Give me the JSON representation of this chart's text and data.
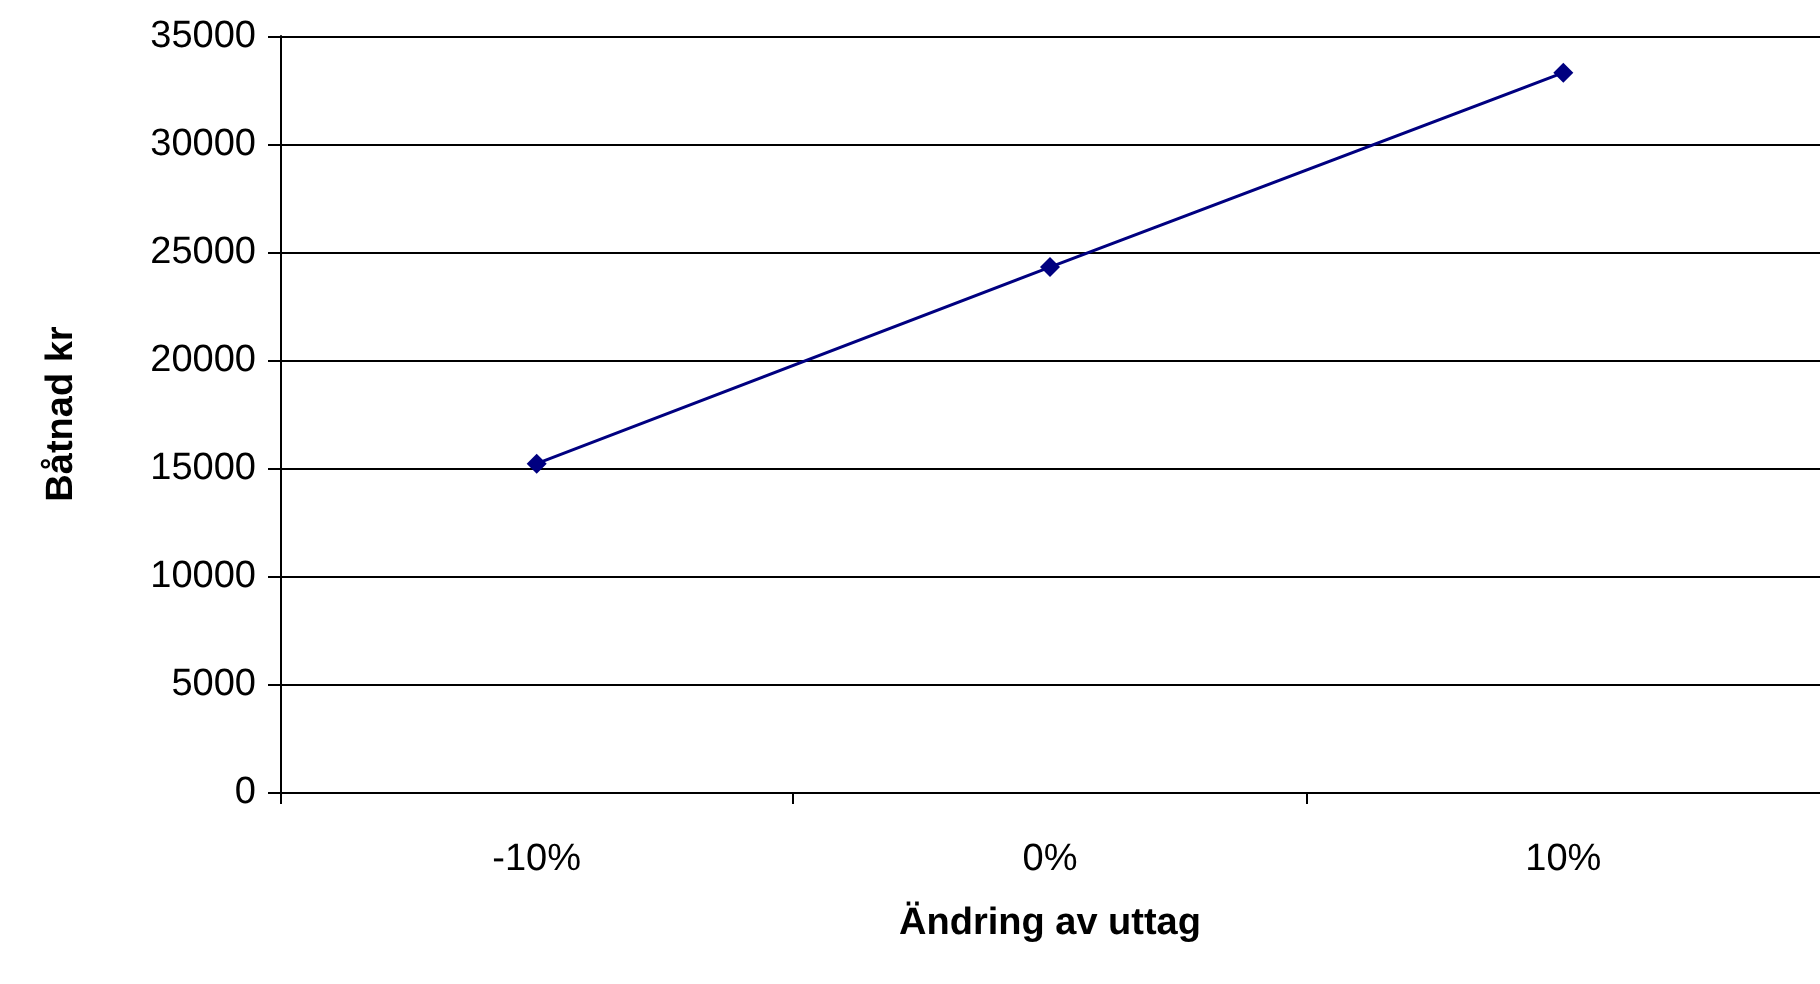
{
  "chart_data": {
    "type": "line",
    "xlabel": "Ändring av uttag",
    "ylabel": "Båtnad kr",
    "categories": [
      "-10%",
      "0%",
      "10%"
    ],
    "series": [
      {
        "color": "#000080",
        "values": [
          15200,
          24300,
          33300
        ]
      }
    ],
    "ylim": [
      0,
      35000
    ],
    "yticks": [
      0,
      5000,
      10000,
      15000,
      20000,
      25000,
      30000,
      35000
    ],
    "grid": "y",
    "marker": "diamond",
    "line_style": "solid"
  }
}
